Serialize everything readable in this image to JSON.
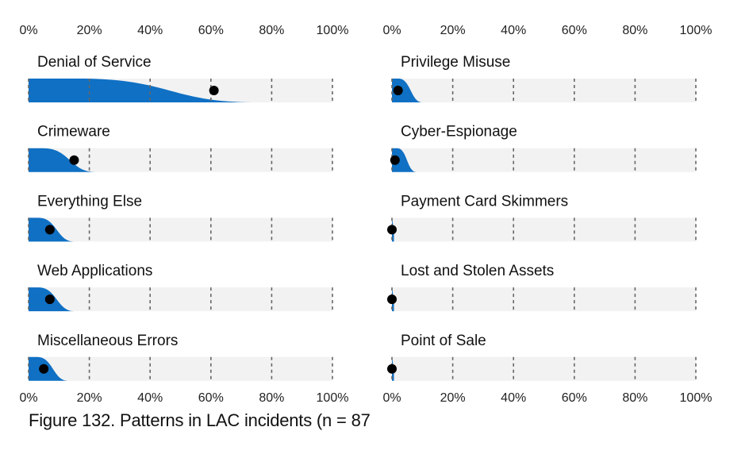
{
  "caption": "Figure 132. Patterns in LAC incidents (n = 87",
  "colors": {
    "distribution": "#0f70c4",
    "track": "#f2f2f2",
    "marker": "#000000",
    "gridline": "#666666"
  },
  "chart_data": {
    "type": "area",
    "x_ticks": [
      "0%",
      "20%",
      "40%",
      "60%",
      "80%",
      "100%"
    ],
    "xlim": [
      0,
      100
    ],
    "grid": "dashed vertical at each 20%",
    "columns": [
      {
        "panels": [
          {
            "title": "Denial of Service",
            "value": 61,
            "spread_end": 75
          },
          {
            "title": "Crimeware",
            "value": 15,
            "spread_end": 22
          },
          {
            "title": "Everything Else",
            "value": 7,
            "spread_end": 15
          },
          {
            "title": "Web Applications",
            "value": 7,
            "spread_end": 15
          },
          {
            "title": "Miscellaneous Errors",
            "value": 5,
            "spread_end": 13
          }
        ]
      },
      {
        "panels": [
          {
            "title": "Privilege Misuse",
            "value": 2,
            "spread_end": 10
          },
          {
            "title": "Cyber-Espionage",
            "value": 1,
            "spread_end": 8
          },
          {
            "title": "Payment Card Skimmers",
            "value": 0,
            "spread_end": 0.5
          },
          {
            "title": "Lost and Stolen Assets",
            "value": 0,
            "spread_end": 0.5
          },
          {
            "title": "Point of Sale",
            "value": 0,
            "spread_end": 0.5
          }
        ]
      }
    ]
  }
}
